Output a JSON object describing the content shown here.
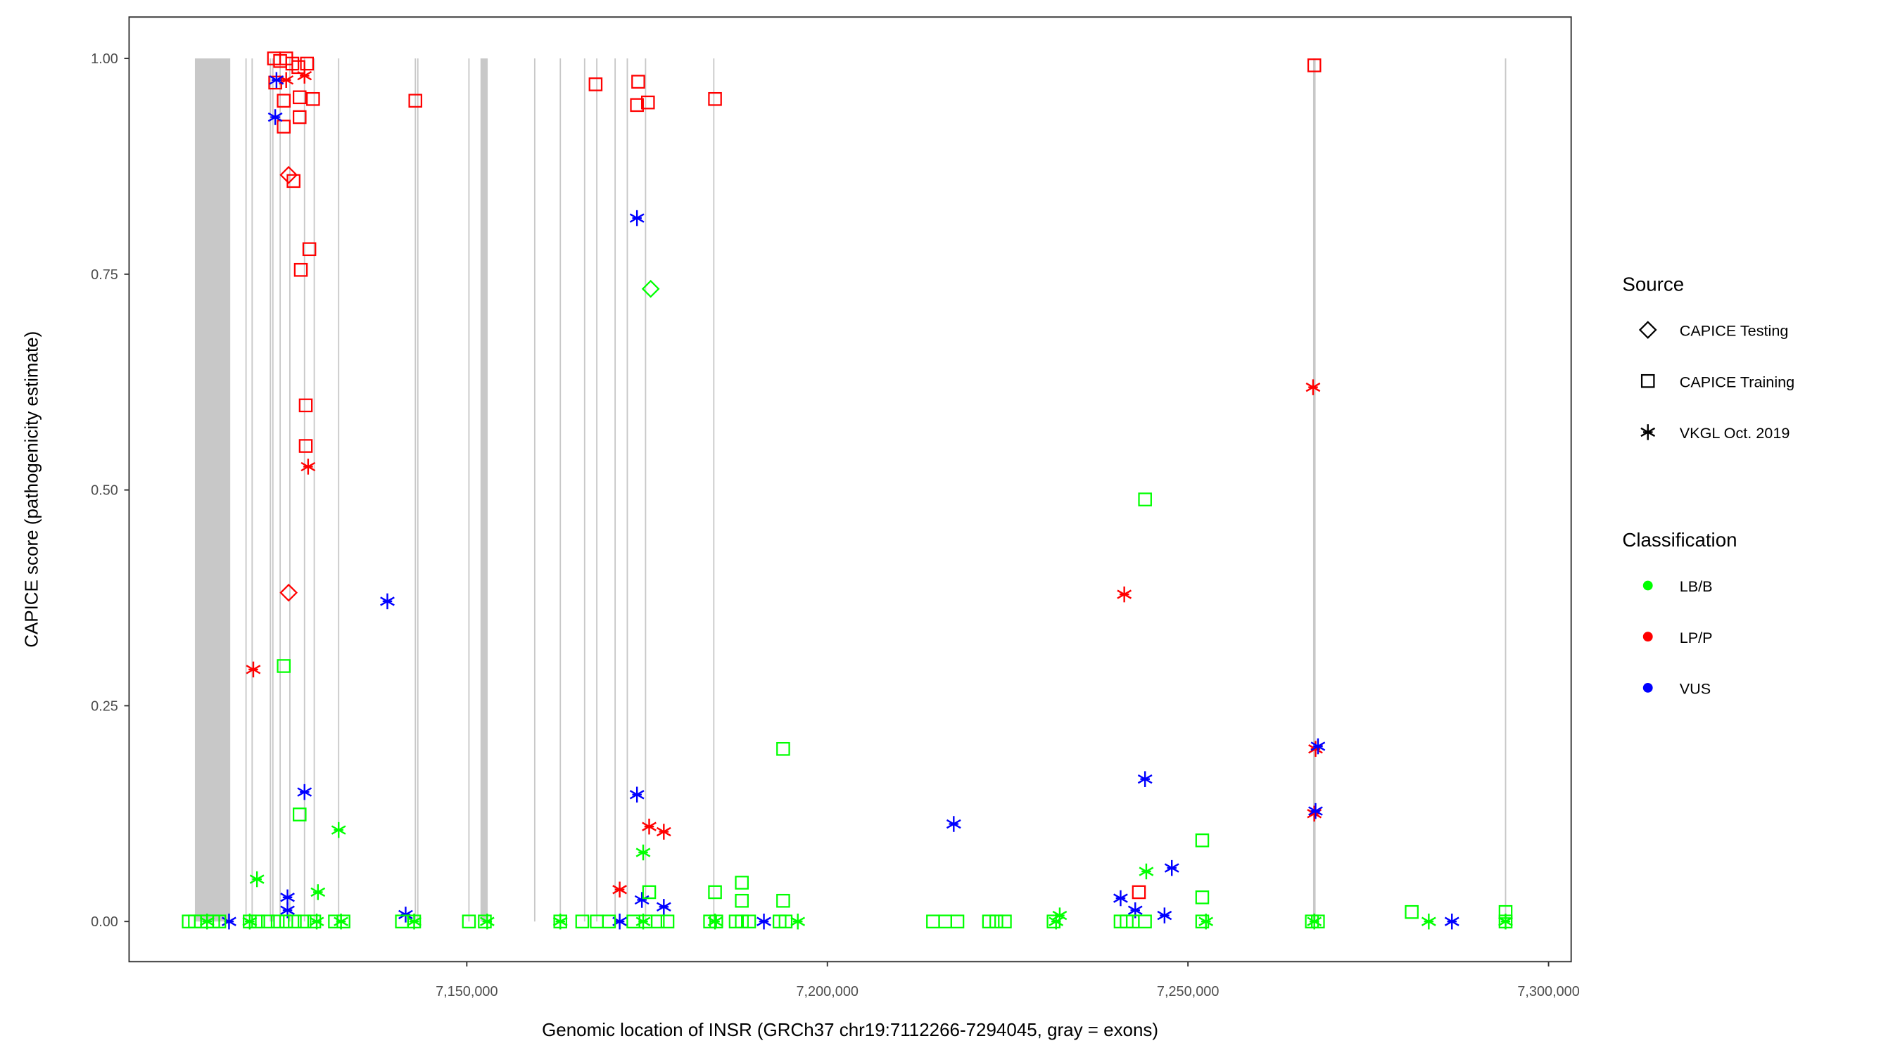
{
  "chart_data": {
    "type": "scatter",
    "xlabel": "Genomic location of INSR (GRCh37 chr19:7112266-7294045, gray = exons)",
    "ylabel": "CAPICE score (pathogenicity estimate)",
    "xlim": [
      7103177,
      7303134
    ],
    "ylim": [
      -0.045,
      1.05
    ],
    "xticks": {
      "values": [
        7150000,
        7200000,
        7250000,
        7300000
      ],
      "labels": [
        "7,150,000",
        "7,200,000",
        "7,250,000",
        "7,300,000"
      ]
    },
    "yticks": {
      "values": [
        0,
        0.25,
        0.5,
        0.75,
        1.0
      ],
      "labels": [
        "0.00",
        "0.25",
        "0.50",
        "0.75",
        "1.00"
      ]
    },
    "grid": false,
    "exons": [
      [
        7112300,
        7117200
      ],
      [
        7119300,
        7119480
      ],
      [
        7120150,
        7120330
      ],
      [
        7122680,
        7122860
      ],
      [
        7123020,
        7123200
      ],
      [
        7124030,
        7124210
      ],
      [
        7125380,
        7125560
      ],
      [
        7127410,
        7127590
      ],
      [
        7128760,
        7128940
      ],
      [
        7132140,
        7132320
      ],
      [
        7142780,
        7142960
      ],
      [
        7143120,
        7143300
      ],
      [
        7150210,
        7150390
      ],
      [
        7151900,
        7152900
      ],
      [
        7159330,
        7159510
      ],
      [
        7162880,
        7163060
      ],
      [
        7166250,
        7166430
      ],
      [
        7167940,
        7168120
      ],
      [
        7170480,
        7170660
      ],
      [
        7172170,
        7172350
      ],
      [
        7174700,
        7174880
      ],
      [
        7184160,
        7184340
      ],
      [
        7267350,
        7267700
      ],
      [
        7293950,
        7294130
      ]
    ],
    "legend": {
      "placement": "right",
      "source_title": "Source",
      "sources": [
        {
          "label": "CAPICE Testing",
          "shape": "diamond"
        },
        {
          "label": "CAPICE Training",
          "shape": "square"
        },
        {
          "label": "VKGL Oct. 2019",
          "shape": "asterisk"
        }
      ],
      "class_title": "Classification",
      "classes": [
        {
          "label": "LB/B",
          "color": "#00ff00"
        },
        {
          "label": "LP/P",
          "color": "#ff0000"
        },
        {
          "label": "VUS",
          "color": "#0000ff"
        }
      ]
    },
    "series": [
      {
        "source": "CAPICE Training",
        "class": "LP/P",
        "x": [
          7123270,
          7124120,
          7124960,
          7125810,
          7126650,
          7127840,
          7123440,
          7124620,
          7128680,
          7126820,
          7124620,
          7126820,
          7125980,
          7128170,
          7126990,
          7127670,
          7127670,
          7142870,
          7167860,
          7173770,
          7173600,
          7175120,
          7184420,
          7267520,
          7243200
        ],
        "y": [
          1.0,
          0.997,
          1.0,
          0.994,
          0.99,
          0.994,
          0.972,
          0.951,
          0.953,
          0.955,
          0.921,
          0.932,
          0.858,
          0.779,
          0.755,
          0.598,
          0.551,
          0.951,
          0.97,
          0.973,
          0.946,
          0.949,
          0.953,
          0.992,
          0.034
        ]
      },
      {
        "source": "CAPICE Testing",
        "class": "LP/P",
        "x": [
          7125300,
          7125300
        ],
        "y": [
          0.865,
          0.381
        ]
      },
      {
        "source": "CAPICE Testing",
        "class": "LB/B",
        "x": [
          7175500
        ],
        "y": [
          0.733
        ]
      },
      {
        "source": "VKGL Oct. 2019",
        "class": "LP/P",
        "x": [
          7127500,
          7124960,
          7128000,
          7120400,
          7171200,
          7175290,
          7177320,
          7241170,
          7267350,
          7267690,
          7267520
        ],
        "y": [
          0.98,
          0.975,
          0.527,
          0.292,
          0.037,
          0.11,
          0.104,
          0.379,
          0.619,
          0.2,
          0.125
        ]
      },
      {
        "source": "VKGL Oct. 2019",
        "class": "VUS",
        "x": [
          7123610,
          7123440,
          7127500,
          7125140,
          7125140,
          7138990,
          7141520,
          7173600,
          7173600,
          7174280,
          7177320,
          7171200,
          7191200,
          7117030,
          7217520,
          7244050,
          7247760,
          7240660,
          7242690,
          7246750,
          7268030,
          7267690,
          7286600
        ],
        "y": [
          0.975,
          0.932,
          0.15,
          0.028,
          0.013,
          0.371,
          0.008,
          0.815,
          0.147,
          0.025,
          0.017,
          0,
          0,
          0,
          0.113,
          0.165,
          0.062,
          0.027,
          0.013,
          0.007,
          0.203,
          0.128,
          0
        ]
      },
      {
        "source": "CAPICE Training",
        "class": "LB/B",
        "x": [
          7124620,
          7126820,
          7244050,
          7193870,
          7251980,
          7251980,
          7281030,
          7294040,
          7184420,
          7188140,
          7188140,
          7193870,
          7175290,
          7111450,
          7112300,
          7113140,
          7113990,
          7114830,
          7115680,
          7119900,
          7121080,
          7122430,
          7123780,
          7124960,
          7126150,
          7127500,
          7128850,
          7131720,
          7132900,
          7141010,
          7142700,
          7150300,
          7152500,
          7162970,
          7166010,
          7168030,
          7169720,
          7173100,
          7174790,
          7176480,
          7177830,
          7183740,
          7184590,
          7187290,
          7188140,
          7189150,
          7193370,
          7194210,
          7214650,
          7216340,
          7218030,
          7222420,
          7223430,
          7224610,
          7231370,
          7240660,
          7241500,
          7242350,
          7244040,
          7251980,
          7267180,
          7268020,
          7294040
        ],
        "y": [
          0.296,
          0.124,
          0.489,
          0.2,
          0.094,
          0.028,
          0.011,
          0.011,
          0.034,
          0.045,
          0.024,
          0.024,
          0.034,
          0,
          0,
          0,
          0,
          0,
          0,
          0,
          0,
          0,
          0,
          0,
          0,
          0,
          0,
          0,
          0,
          0,
          0,
          0,
          0,
          0,
          0,
          0,
          0,
          0,
          0,
          0,
          0,
          0,
          0,
          0,
          0,
          0,
          0,
          0,
          0,
          0,
          0,
          0,
          0,
          0,
          0,
          0,
          0,
          0,
          0,
          0,
          0,
          0,
          0
        ]
      },
      {
        "source": "VKGL Oct. 2019",
        "class": "LB/B",
        "x": [
          7120910,
          7132230,
          7129360,
          7174460,
          7244220,
          7283390,
          7232220,
          7113990,
          7119900,
          7129190,
          7132560,
          7142700,
          7152830,
          7162970,
          7174460,
          7184420,
          7195900,
          7231710,
          7252490,
          7267520,
          7294040
        ],
        "y": [
          0.049,
          0.106,
          0.034,
          0.08,
          0.058,
          0,
          0.007,
          0,
          0,
          0,
          0,
          0,
          0,
          0,
          0,
          0,
          0,
          0,
          0,
          0,
          0
        ]
      }
    ]
  }
}
